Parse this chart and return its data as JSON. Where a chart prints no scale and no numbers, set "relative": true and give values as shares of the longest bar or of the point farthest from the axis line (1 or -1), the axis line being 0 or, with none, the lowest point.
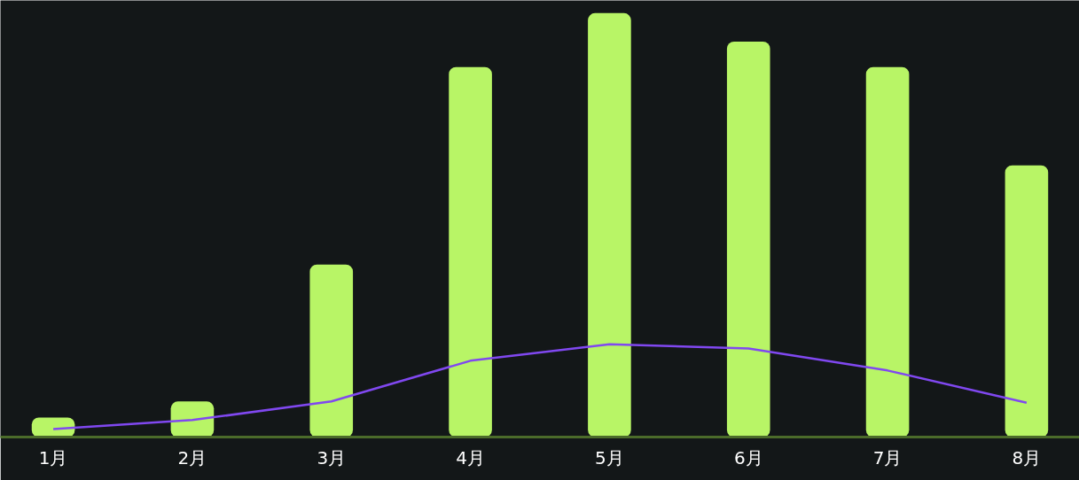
{
  "chart_data": {
    "type": "bar",
    "relative": true,
    "categories": [
      "1月",
      "2月",
      "3月",
      "4月",
      "5月",
      "6月",
      "7月",
      "8月"
    ],
    "series": [
      {
        "color": "#b8f566",
        "values": [
          0.046,
          0.084,
          0.407,
          0.873,
          1.0,
          0.933,
          0.873,
          0.641
        ]
      },
      {
        "type": "line",
        "color": "#8048f0",
        "values": [
          0.019,
          0.04,
          0.084,
          0.18,
          0.219,
          0.209,
          0.157,
          0.081
        ]
      }
    ],
    "grid": false
  }
}
